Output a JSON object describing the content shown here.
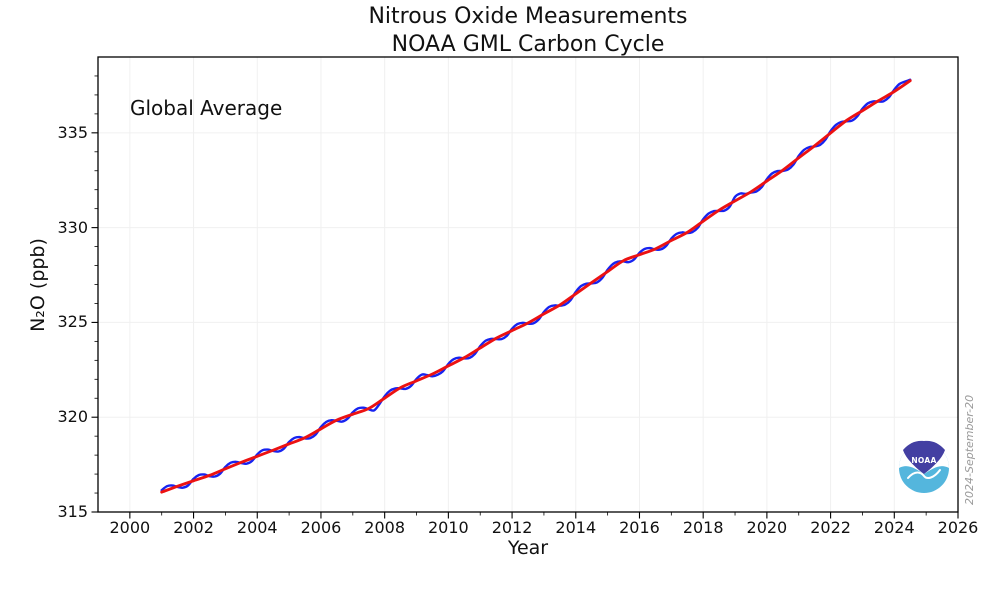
{
  "title": {
    "line1": "Nitrous Oxide Measurements",
    "line2": "NOAA GML Carbon Cycle"
  },
  "annotation": {
    "text": "Global Average"
  },
  "axes": {
    "xlabel": "Year",
    "ylabel": "N₂O (ppb)"
  },
  "stamp": {
    "text": "2024-September-20"
  },
  "logo": {
    "text": "NOAA",
    "indigo": "#433fa2",
    "light_blue": "#54b6dd"
  },
  "colors": {
    "blue_line": "#1723f0",
    "red_line": "#ec1212",
    "grid": "#f0f0f0",
    "frame": "#000000",
    "text": "#111111",
    "stamp": "#9a9a9a"
  },
  "chart_data": {
    "type": "line",
    "title": "Nitrous Oxide Measurements",
    "subtitle": "NOAA GML Carbon Cycle",
    "xlabel": "Year",
    "ylabel": "N2O (ppb)",
    "xlim": [
      1999,
      2026
    ],
    "ylim": [
      315,
      339
    ],
    "xticks": [
      2000,
      2002,
      2004,
      2006,
      2008,
      2010,
      2012,
      2014,
      2016,
      2018,
      2020,
      2022,
      2024,
      2026
    ],
    "yticks": [
      315,
      320,
      325,
      330,
      335
    ],
    "minor_tick_step_x": 1,
    "minor_tick_step_y": 1,
    "grid": "major ticks only, very light gray",
    "legend": "none",
    "annotations": [
      "Global Average"
    ],
    "stamp": "2024-September-20",
    "series": [
      {
        "name": "blue-line-monthly-global-average",
        "color": "#1723f0",
        "line_width": 2.4,
        "x_start": 2001.0,
        "x_step": 0.1666667,
        "values": [
          316.15,
          316.36,
          316.4,
          316.32,
          316.28,
          316.41,
          316.75,
          316.95,
          316.98,
          316.89,
          316.87,
          317.02,
          317.38,
          317.6,
          317.65,
          317.58,
          317.55,
          317.69,
          318.04,
          318.26,
          318.29,
          318.22,
          318.19,
          318.34,
          318.69,
          318.91,
          318.95,
          318.88,
          318.9,
          319.09,
          319.49,
          319.75,
          319.84,
          319.81,
          319.77,
          319.92,
          320.26,
          320.47,
          320.5,
          320.42,
          320.36,
          320.69,
          321.11,
          321.4,
          321.52,
          321.52,
          321.5,
          321.66,
          322.02,
          322.25,
          322.22,
          322.16,
          322.24,
          322.43,
          322.81,
          323.06,
          323.14,
          323.1,
          323.13,
          323.34,
          323.75,
          324.03,
          324.13,
          324.12,
          324.12,
          324.29,
          324.67,
          324.91,
          324.98,
          324.93,
          324.95,
          325.15,
          325.55,
          325.82,
          325.9,
          325.88,
          325.94,
          326.17,
          326.61,
          326.92,
          327.04,
          327.06,
          327.11,
          327.35,
          327.78,
          328.08,
          328.21,
          328.22,
          328.18,
          328.33,
          328.67,
          328.88,
          328.92,
          328.84,
          328.85,
          329.03,
          329.42,
          329.67,
          329.75,
          329.71,
          329.77,
          330.0,
          330.44,
          330.74,
          330.87,
          330.88,
          330.9,
          331.11,
          331.62,
          331.8,
          331.78,
          331.85,
          331.9,
          332.13,
          332.56,
          332.86,
          332.98,
          332.99,
          333.07,
          333.32,
          333.78,
          334.1,
          334.25,
          334.28,
          334.36,
          334.63,
          335.09,
          335.42,
          335.57,
          335.61,
          335.64,
          335.86,
          336.27,
          336.55,
          336.66,
          336.65,
          336.67,
          336.88,
          337.28,
          337.58,
          337.7,
          337.8
        ]
      },
      {
        "name": "red-line-smooth-trend",
        "color": "#ec1212",
        "line_width": 2.9,
        "x_start": 2001.0,
        "x_step": 0.5,
        "values": [
          316.05,
          316.36,
          316.65,
          316.93,
          317.28,
          317.62,
          317.94,
          318.26,
          318.59,
          318.92,
          319.39,
          319.85,
          320.16,
          320.46,
          321.01,
          321.56,
          321.92,
          322.28,
          322.71,
          323.14,
          323.65,
          324.16,
          324.57,
          324.97,
          325.45,
          325.92,
          326.51,
          327.1,
          327.68,
          328.26,
          328.57,
          328.88,
          329.32,
          329.75,
          330.34,
          330.92,
          331.41,
          331.89,
          332.46,
          333.03,
          333.68,
          334.32,
          334.99,
          335.65,
          336.17,
          336.69,
          337.18,
          337.75
        ]
      }
    ]
  }
}
